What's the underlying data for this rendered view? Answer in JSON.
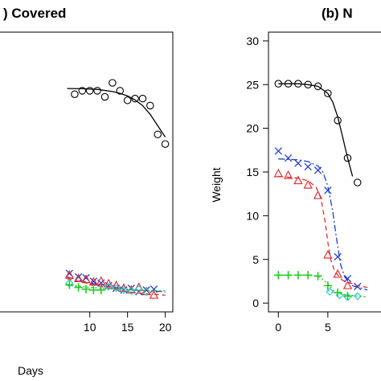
{
  "chart_data": [
    {
      "type": "scatter",
      "title": ") Covered",
      "xlabel": "Days",
      "ylabel": "",
      "xlim": [
        -2,
        21
      ],
      "ylim": [
        -1,
        31
      ],
      "x_ticks": [
        "10",
        "15",
        "20"
      ],
      "y_ticks": [],
      "grid": false,
      "series": [
        {
          "marker": "circle",
          "color": "#000000",
          "line_style": "solid",
          "points": [
            [
              8,
              23.9
            ],
            [
              9,
              24.3
            ],
            [
              10,
              24.3
            ],
            [
              11,
              24.3
            ],
            [
              12,
              23.6
            ],
            [
              13,
              25.2
            ],
            [
              14,
              24.3
            ],
            [
              15,
              23.2
            ],
            [
              16,
              23.4
            ],
            [
              17,
              23.4
            ],
            [
              18,
              22.6
            ],
            [
              19,
              19.3
            ],
            [
              20,
              18.2
            ]
          ],
          "fit": [
            [
              7,
              24.55
            ],
            [
              9,
              24.53
            ],
            [
              11,
              24.45
            ],
            [
              13,
              24.2
            ],
            [
              14,
              24.0
            ],
            [
              15,
              23.7
            ],
            [
              16,
              23.25
            ],
            [
              17,
              22.6
            ],
            [
              18,
              21.6
            ],
            [
              19,
              20.3
            ],
            [
              20,
              19.0
            ]
          ]
        },
        {
          "marker": "x",
          "color": "#1f3fd0",
          "line_style": "dashdot",
          "points": [
            [
              7.3,
              3.4
            ],
            [
              8.5,
              3.0
            ],
            [
              9.5,
              2.9
            ],
            [
              10.5,
              2.5
            ],
            [
              11.5,
              2.3
            ],
            [
              12.5,
              2.0
            ],
            [
              13.5,
              1.7
            ],
            [
              14.5,
              1.5
            ],
            [
              15.5,
              1.7
            ],
            [
              16.5,
              1.3
            ],
            [
              17.5,
              1.5
            ],
            [
              18.5,
              1.6
            ]
          ],
          "fit": [
            [
              7,
              3.0
            ],
            [
              10,
              2.3
            ],
            [
              13,
              1.8
            ],
            [
              16,
              1.5
            ],
            [
              20,
              1.3
            ]
          ]
        },
        {
          "marker": "triangle",
          "color": "#e23030",
          "line_style": "dashed",
          "points": [
            [
              7.3,
              3.2
            ],
            [
              8.5,
              2.8
            ],
            [
              9.5,
              2.7
            ],
            [
              10.5,
              2.4
            ],
            [
              11.5,
              2.5
            ],
            [
              12.5,
              2.2
            ],
            [
              13.5,
              2.0
            ],
            [
              14.5,
              1.7
            ],
            [
              15.5,
              1.5
            ],
            [
              16.5,
              1.8
            ],
            [
              17.5,
              1.3
            ],
            [
              18.5,
              0.9
            ]
          ],
          "fit": [
            [
              7,
              2.8
            ],
            [
              10,
              2.2
            ],
            [
              13,
              1.6
            ],
            [
              16,
              1.2
            ],
            [
              20,
              0.9
            ]
          ]
        },
        {
          "marker": "diamond",
          "color": "#33cccc",
          "line_style": "dotted",
          "points": [
            [
              7.3,
              2.3
            ],
            [
              12.5,
              1.9
            ],
            [
              13.5,
              1.7
            ],
            [
              14.5,
              1.5
            ],
            [
              15.5,
              1.4
            ],
            [
              16.5,
              1.6
            ],
            [
              17.5,
              1.3
            ]
          ],
          "fit": [
            [
              7,
              2.0
            ],
            [
              12,
              1.7
            ],
            [
              16,
              1.5
            ],
            [
              20,
              1.4
            ]
          ]
        },
        {
          "marker": "plus",
          "color": "#22cc22",
          "line_style": "dotted",
          "points": [
            [
              7.3,
              2.1
            ],
            [
              8.5,
              1.8
            ],
            [
              9.5,
              1.6
            ],
            [
              10.5,
              1.5
            ],
            [
              11.5,
              1.5
            ]
          ],
          "fit": [
            [
              7,
              2.1
            ],
            [
              11,
              1.7
            ],
            [
              15,
              1.5
            ],
            [
              20,
              1.4
            ]
          ]
        }
      ]
    },
    {
      "type": "scatter",
      "title": "(b) N",
      "xlabel": "",
      "ylabel": "Weight",
      "xlim": [
        -1,
        12
      ],
      "ylim": [
        -1,
        31
      ],
      "x_ticks": [
        "0",
        "5"
      ],
      "y_ticks": [
        "0",
        "5",
        "10",
        "15",
        "20",
        "25",
        "30"
      ],
      "grid": false,
      "series": [
        {
          "marker": "circle",
          "color": "#000000",
          "line_style": "solid",
          "points": [
            [
              0,
              25.1
            ],
            [
              1,
              25.1
            ],
            [
              2,
              25.1
            ],
            [
              3,
              25.0
            ],
            [
              4,
              24.8
            ],
            [
              5,
              24.0
            ],
            [
              6,
              20.9
            ],
            [
              7,
              16.6
            ],
            [
              8,
              13.8
            ]
          ],
          "fit": [
            [
              0,
              25.1
            ],
            [
              2,
              25.1
            ],
            [
              3,
              25.0
            ],
            [
              4,
              24.8
            ],
            [
              5,
              24.0
            ],
            [
              5.5,
              23.0
            ],
            [
              6,
              21.3
            ],
            [
              6.5,
              19.0
            ],
            [
              7,
              16.6
            ],
            [
              7.5,
              14.5
            ]
          ]
        },
        {
          "marker": "x",
          "color": "#1f3fd0",
          "line_style": "dashdot",
          "points": [
            [
              0,
              17.4
            ],
            [
              1,
              16.6
            ],
            [
              2,
              16.0
            ],
            [
              3,
              15.6
            ],
            [
              4,
              15.2
            ],
            [
              5,
              12.9
            ],
            [
              6,
              5.3
            ],
            [
              7,
              2.8
            ],
            [
              8,
              1.9
            ]
          ],
          "fit": [
            [
              0,
              16.5
            ],
            [
              2,
              16.4
            ],
            [
              3,
              16.2
            ],
            [
              4,
              15.7
            ],
            [
              4.5,
              15.0
            ],
            [
              5,
              13.4
            ],
            [
              5.5,
              10.5
            ],
            [
              5.8,
              8.0
            ],
            [
              6,
              6.5
            ],
            [
              6.3,
              4.4
            ],
            [
              6.7,
              3.0
            ],
            [
              7.5,
              2.0
            ],
            [
              9,
              1.5
            ]
          ]
        },
        {
          "marker": "triangle",
          "color": "#e23030",
          "line_style": "dashed",
          "points": [
            [
              0,
              14.8
            ],
            [
              1,
              14.6
            ],
            [
              2,
              14.0
            ],
            [
              3,
              13.5
            ],
            [
              4,
              12.3
            ],
            [
              5,
              5.5
            ],
            [
              6,
              3.3
            ],
            [
              7,
              2.0
            ]
          ],
          "fit": [
            [
              0,
              14.5
            ],
            [
              2,
              14.3
            ],
            [
              3,
              14.0
            ],
            [
              3.8,
              13.3
            ],
            [
              4.3,
              12.0
            ],
            [
              4.7,
              9.5
            ],
            [
              5,
              7.0
            ],
            [
              5.3,
              5.0
            ],
            [
              5.7,
              3.6
            ],
            [
              6.5,
              2.6
            ],
            [
              8,
              2.0
            ],
            [
              9,
              1.8
            ]
          ]
        },
        {
          "marker": "diamond",
          "color": "#33cccc",
          "line_style": "dotted",
          "points": [
            [
              5.2,
              1.3
            ],
            [
              6.2,
              0.9
            ],
            [
              7,
              0.7
            ],
            [
              8,
              0.8
            ]
          ],
          "fit": [
            [
              5,
              1.4
            ],
            [
              6.5,
              1.0
            ],
            [
              8,
              0.8
            ],
            [
              9,
              0.7
            ]
          ]
        },
        {
          "marker": "plus",
          "color": "#22cc22",
          "line_style": "dotted",
          "points": [
            [
              0,
              3.2
            ],
            [
              1,
              3.2
            ],
            [
              2,
              3.2
            ],
            [
              3,
              3.2
            ],
            [
              4,
              3.1
            ],
            [
              5,
              2.0
            ],
            [
              6,
              1.2
            ],
            [
              7,
              0.8
            ]
          ],
          "fit": [
            [
              0,
              3.2
            ],
            [
              3,
              3.2
            ],
            [
              4.2,
              3.0
            ],
            [
              5,
              2.2
            ],
            [
              5.7,
              1.3
            ],
            [
              6.5,
              1.0
            ],
            [
              8,
              0.8
            ],
            [
              9,
              0.7
            ]
          ]
        }
      ]
    }
  ]
}
